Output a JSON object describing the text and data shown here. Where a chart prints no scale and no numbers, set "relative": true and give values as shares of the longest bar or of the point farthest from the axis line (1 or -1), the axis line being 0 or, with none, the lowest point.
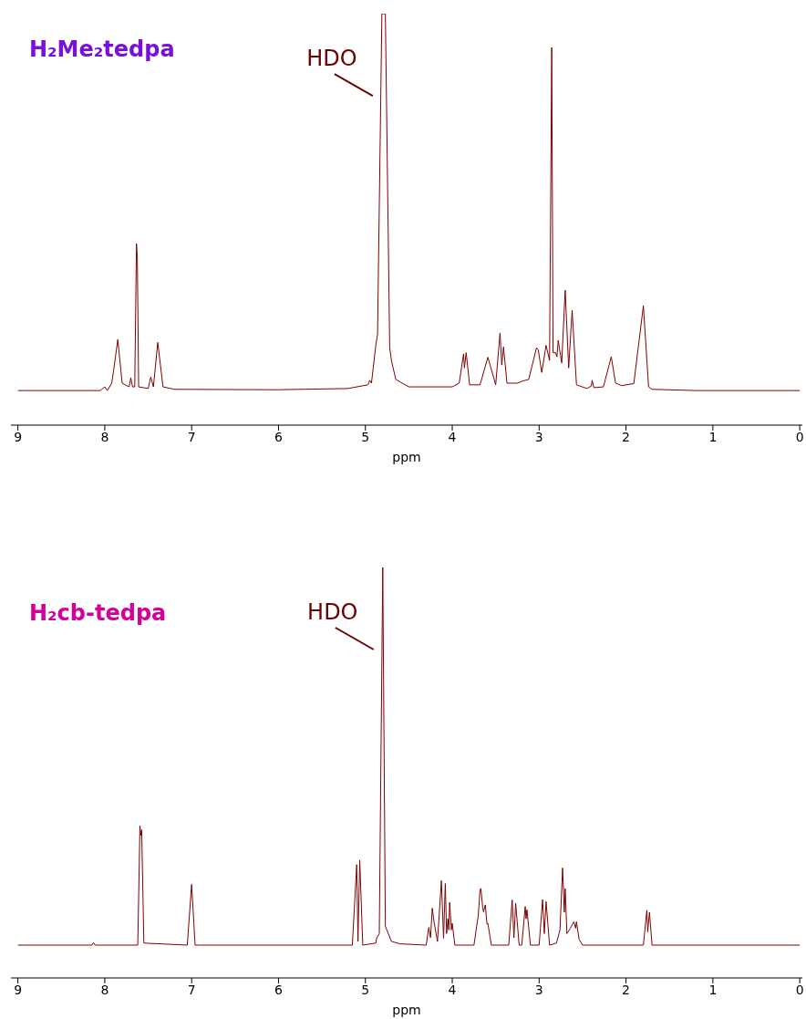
{
  "chart_data": [
    {
      "type": "line",
      "title": "H₂Me₂tedpa",
      "xlabel": "ppm",
      "relative": true,
      "marker": "none",
      "color": "#800000",
      "xlim": [
        9.08,
        -0.03
      ],
      "xticks": [
        9,
        8,
        7,
        6,
        5,
        4,
        3,
        2,
        1,
        0
      ],
      "x": [
        9.0,
        8.05,
        8.0,
        7.97,
        7.92,
        7.9,
        7.85,
        7.8,
        7.72,
        7.7,
        7.68,
        7.655,
        7.635,
        7.625,
        7.61,
        7.5,
        7.47,
        7.44,
        7.39,
        7.33,
        7.2,
        6.0,
        5.2,
        4.97,
        4.95,
        4.93,
        4.88,
        4.86,
        4.81,
        4.77,
        4.72,
        4.7,
        4.65,
        4.5,
        4.0,
        3.92,
        3.87,
        3.86,
        3.84,
        3.8,
        3.68,
        3.59,
        3.5,
        3.45,
        3.43,
        3.41,
        3.37,
        3.25,
        3.19,
        3.12,
        3.03,
        3.01,
        2.97,
        2.92,
        2.88,
        2.855,
        2.84,
        2.81,
        2.795,
        2.78,
        2.74,
        2.7,
        2.66,
        2.62,
        2.57,
        2.45,
        2.4,
        2.39,
        2.37,
        2.26,
        2.17,
        2.12,
        2.05,
        1.91,
        1.8,
        1.74,
        1.7,
        1.2,
        0
      ],
      "values": [
        0.084,
        0.084,
        0.093,
        0.084,
        0.102,
        0.13,
        0.208,
        0.102,
        0.093,
        0.115,
        0.093,
        0.093,
        0.441,
        0.405,
        0.093,
        0.089,
        0.117,
        0.093,
        0.201,
        0.093,
        0.087,
        0.086,
        0.089,
        0.098,
        0.109,
        0.102,
        0.194,
        0.221,
        1,
        1,
        0.189,
        0.157,
        0.111,
        0.093,
        0.093,
        0.102,
        0.173,
        0.139,
        0.176,
        0.098,
        0.098,
        0.165,
        0.098,
        0.224,
        0.146,
        0.19,
        0.102,
        0.102,
        0.107,
        0.111,
        0.188,
        0.183,
        0.128,
        0.194,
        0.157,
        0.918,
        0.176,
        0.176,
        0.166,
        0.206,
        0.151,
        0.328,
        0.139,
        0.279,
        0.098,
        0.089,
        0.095,
        0.109,
        0.091,
        0.093,
        0.166,
        0.102,
        0.096,
        0.101,
        0.29,
        0.093,
        0.087,
        0.084,
        0.084
      ],
      "annotations": [
        "HDO"
      ]
    },
    {
      "type": "line",
      "title": "H₂cb-tedpa",
      "xlabel": "ppm",
      "relative": true,
      "marker": "none",
      "color": "#800000",
      "xlim": [
        9.08,
        -0.03
      ],
      "xticks": [
        9,
        8,
        7,
        6,
        5,
        4,
        3,
        2,
        1,
        0
      ],
      "x": [
        9.0,
        8.15,
        8.13,
        8.11,
        7.62,
        7.595,
        7.585,
        7.575,
        7.55,
        7.05,
        7.0,
        6.96,
        5.15,
        5.1,
        5.085,
        5.065,
        5.03,
        4.88,
        4.87,
        4.84,
        4.8,
        4.77,
        4.7,
        4.6,
        4.3,
        4.27,
        4.25,
        4.23,
        4.21,
        4.17,
        4.125,
        4.1,
        4.08,
        4.065,
        4.05,
        4.04,
        4.03,
        4.01,
        4.0,
        3.97,
        3.75,
        3.7,
        3.68,
        3.67,
        3.65,
        3.64,
        3.62,
        3.6,
        3.59,
        3.55,
        3.35,
        3.31,
        3.29,
        3.27,
        3.23,
        3.2,
        3.16,
        3.15,
        3.14,
        3.1,
        3.0,
        2.96,
        2.94,
        2.92,
        2.88,
        2.8,
        2.76,
        2.73,
        2.71,
        2.7,
        2.68,
        2.64,
        2.6,
        2.58,
        2.57,
        2.54,
        2.5,
        1.8,
        1.76,
        1.75,
        1.73,
        1.7,
        0
      ],
      "values": [
        0.08,
        0.08,
        0.086,
        0.08,
        0.08,
        0.371,
        0.347,
        0.361,
        0.085,
        0.08,
        0.228,
        0.08,
        0.08,
        0.276,
        0.089,
        0.287,
        0.08,
        0.085,
        0.097,
        0.108,
        1,
        0.126,
        0.089,
        0.083,
        0.08,
        0.123,
        0.098,
        0.17,
        0.137,
        0.089,
        0.237,
        0.097,
        0.23,
        0.108,
        0.144,
        0.117,
        0.184,
        0.117,
        0.133,
        0.08,
        0.08,
        0.153,
        0.215,
        0.218,
        0.172,
        0.161,
        0.178,
        0.131,
        0.133,
        0.08,
        0.08,
        0.19,
        0.098,
        0.182,
        0.08,
        0.08,
        0.174,
        0.144,
        0.166,
        0.08,
        0.08,
        0.191,
        0.108,
        0.186,
        0.08,
        0.085,
        0.117,
        0.268,
        0.16,
        0.218,
        0.108,
        0.121,
        0.137,
        0.121,
        0.137,
        0.094,
        0.08,
        0.08,
        0.165,
        0.112,
        0.16,
        0.08,
        0.08
      ],
      "annotations": [
        "HDO"
      ]
    }
  ]
}
